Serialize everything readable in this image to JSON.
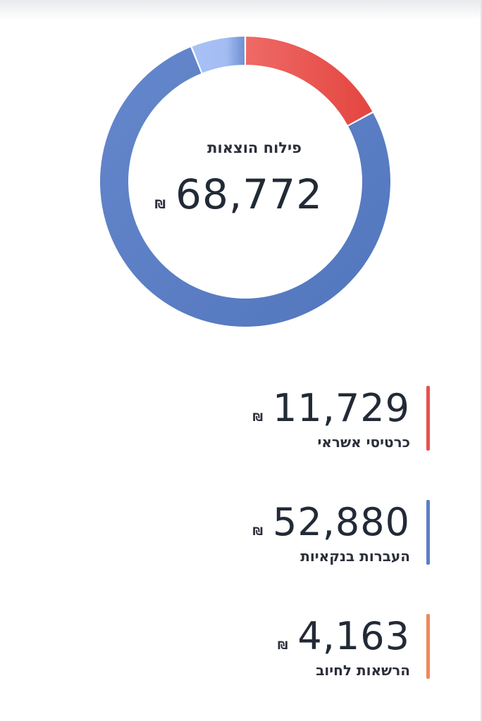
{
  "chart_data": {
    "type": "pie",
    "title": "פילוח הוצאות",
    "total": "68,772",
    "currency": "₪",
    "categories": [
      "כרטיסי אשראי",
      "העברות בנקאיות",
      "הרשאות לחיוב"
    ],
    "values": [
      11729,
      52880,
      4163
    ],
    "value_labels": [
      "11,729",
      "52,880",
      "4,163"
    ],
    "colors": [
      "#e7524f",
      "#5b7fc5",
      "#f0875a"
    ],
    "ring_colors": [
      "#e7524f",
      "#5b7fc5",
      "#a6c0f5"
    ]
  }
}
